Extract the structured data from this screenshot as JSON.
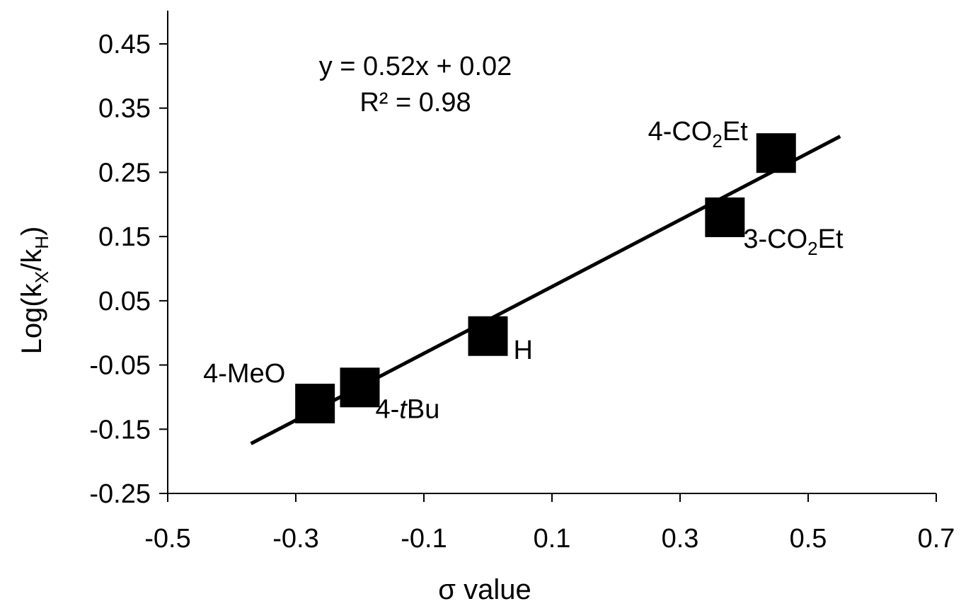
{
  "chart_data": {
    "type": "scatter",
    "xlabel": "σ value",
    "ylabel": {
      "base": "Log(k",
      "sub1": "X",
      "mid": "/k",
      "sub2": "H",
      "end": ")"
    },
    "xlim": [
      -0.5,
      0.7
    ],
    "ylim": [
      -0.25,
      0.45
    ],
    "x_ticks": [
      -0.5,
      -0.3,
      -0.1,
      0.1,
      0.3,
      0.5,
      0.7
    ],
    "x_tick_labels": [
      "-0.5",
      "-0.3",
      "-0.1",
      "0.1",
      "0.3",
      "0.5",
      "0.7"
    ],
    "y_ticks": [
      0.45,
      0.35,
      0.25,
      0.15,
      0.05,
      -0.05,
      -0.15,
      -0.25
    ],
    "y_tick_labels": [
      "0.45",
      "0.35",
      "0.25",
      "0.15",
      "0.05",
      "-0.05",
      "-0.15",
      "-0.25"
    ],
    "grid": false,
    "marker": "square",
    "marker_color": "#000000",
    "points": [
      {
        "label": "4-MeO",
        "x": -0.27,
        "y": -0.11
      },
      {
        "label": "4-tBu",
        "x": -0.2,
        "y": -0.085
      },
      {
        "label": "H",
        "x": 0.0,
        "y": -0.005
      },
      {
        "label": "3-CO2Et",
        "x": 0.37,
        "y": 0.18
      },
      {
        "label": "4-CO2Et",
        "x": 0.45,
        "y": 0.28
      }
    ],
    "trendline": {
      "slope": 0.52,
      "intercept": 0.02,
      "x_range": [
        -0.37,
        0.55
      ],
      "equation": "y = 0.52x + 0.02",
      "r_squared": "R² = 0.98"
    }
  }
}
